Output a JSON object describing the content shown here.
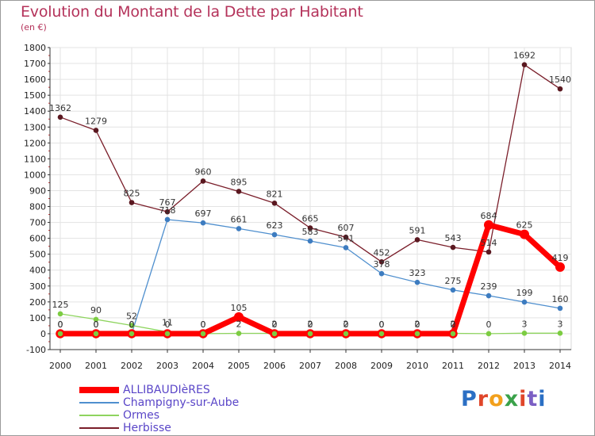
{
  "title": "Evolution du Montant de la Dette par Habitant",
  "subtitle": "(en €)",
  "logo": "Proxiti",
  "chart_data": {
    "type": "line",
    "x": [
      2000,
      2001,
      2002,
      2003,
      2004,
      2005,
      2006,
      2007,
      2008,
      2009,
      2010,
      2011,
      2012,
      2013,
      2014
    ],
    "ylim": [
      -100,
      1800
    ],
    "yticks": [
      -100,
      0,
      100,
      200,
      300,
      400,
      500,
      600,
      700,
      800,
      900,
      1000,
      1100,
      1200,
      1300,
      1400,
      1500,
      1600,
      1700,
      1800
    ],
    "grid": true,
    "legend_position": "bottom-left",
    "series": [
      {
        "name": "Herbisse",
        "color": "#7a1e2a",
        "values": [
          1362,
          1279,
          825,
          767,
          960,
          895,
          821,
          665,
          607,
          452,
          591,
          543,
          514,
          1692,
          1540
        ],
        "labels": [
          "1362",
          "1279",
          "825",
          "767",
          "960",
          "895",
          "821",
          "665",
          "607",
          "452",
          "591",
          "543",
          "514",
          "1692",
          "1540"
        ]
      },
      {
        "name": "Champigny-sur-Aube",
        "color": "#4f8fce",
        "values": [
          0,
          0,
          0,
          718,
          697,
          661,
          623,
          583,
          541,
          378,
          323,
          275,
          239,
          199,
          160
        ],
        "labels": [
          "0",
          "0",
          "0",
          "718",
          "697",
          "661",
          "623",
          "583",
          "541",
          "378",
          "323",
          "275",
          "239",
          "199",
          "160"
        ]
      },
      {
        "name": "Ormes",
        "color": "#8ed45e",
        "values": [
          125,
          90,
          52,
          11,
          0,
          2,
          2,
          2,
          2,
          0,
          2,
          2,
          0,
          3,
          3
        ],
        "labels": [
          "125",
          "90",
          "52",
          "11",
          "0",
          "2",
          "2",
          "2",
          "2",
          "0",
          "2",
          "2",
          "0",
          "3",
          "3"
        ]
      },
      {
        "name": "ALLIBAUDIèRES",
        "color": "#ff0000",
        "values": [
          0,
          0,
          0,
          0,
          0,
          105,
          0,
          0,
          0,
          0,
          0,
          0,
          684,
          625,
          419
        ],
        "labels": [
          "0",
          "0",
          "0",
          "0",
          "0",
          "105",
          "0",
          "0",
          "0",
          "0",
          "0",
          "0",
          "684",
          "625",
          "419"
        ]
      }
    ],
    "legend": [
      "ALLIBAUDIèRES",
      "Champigny-sur-Aube",
      "Ormes",
      "Herbisse"
    ]
  }
}
